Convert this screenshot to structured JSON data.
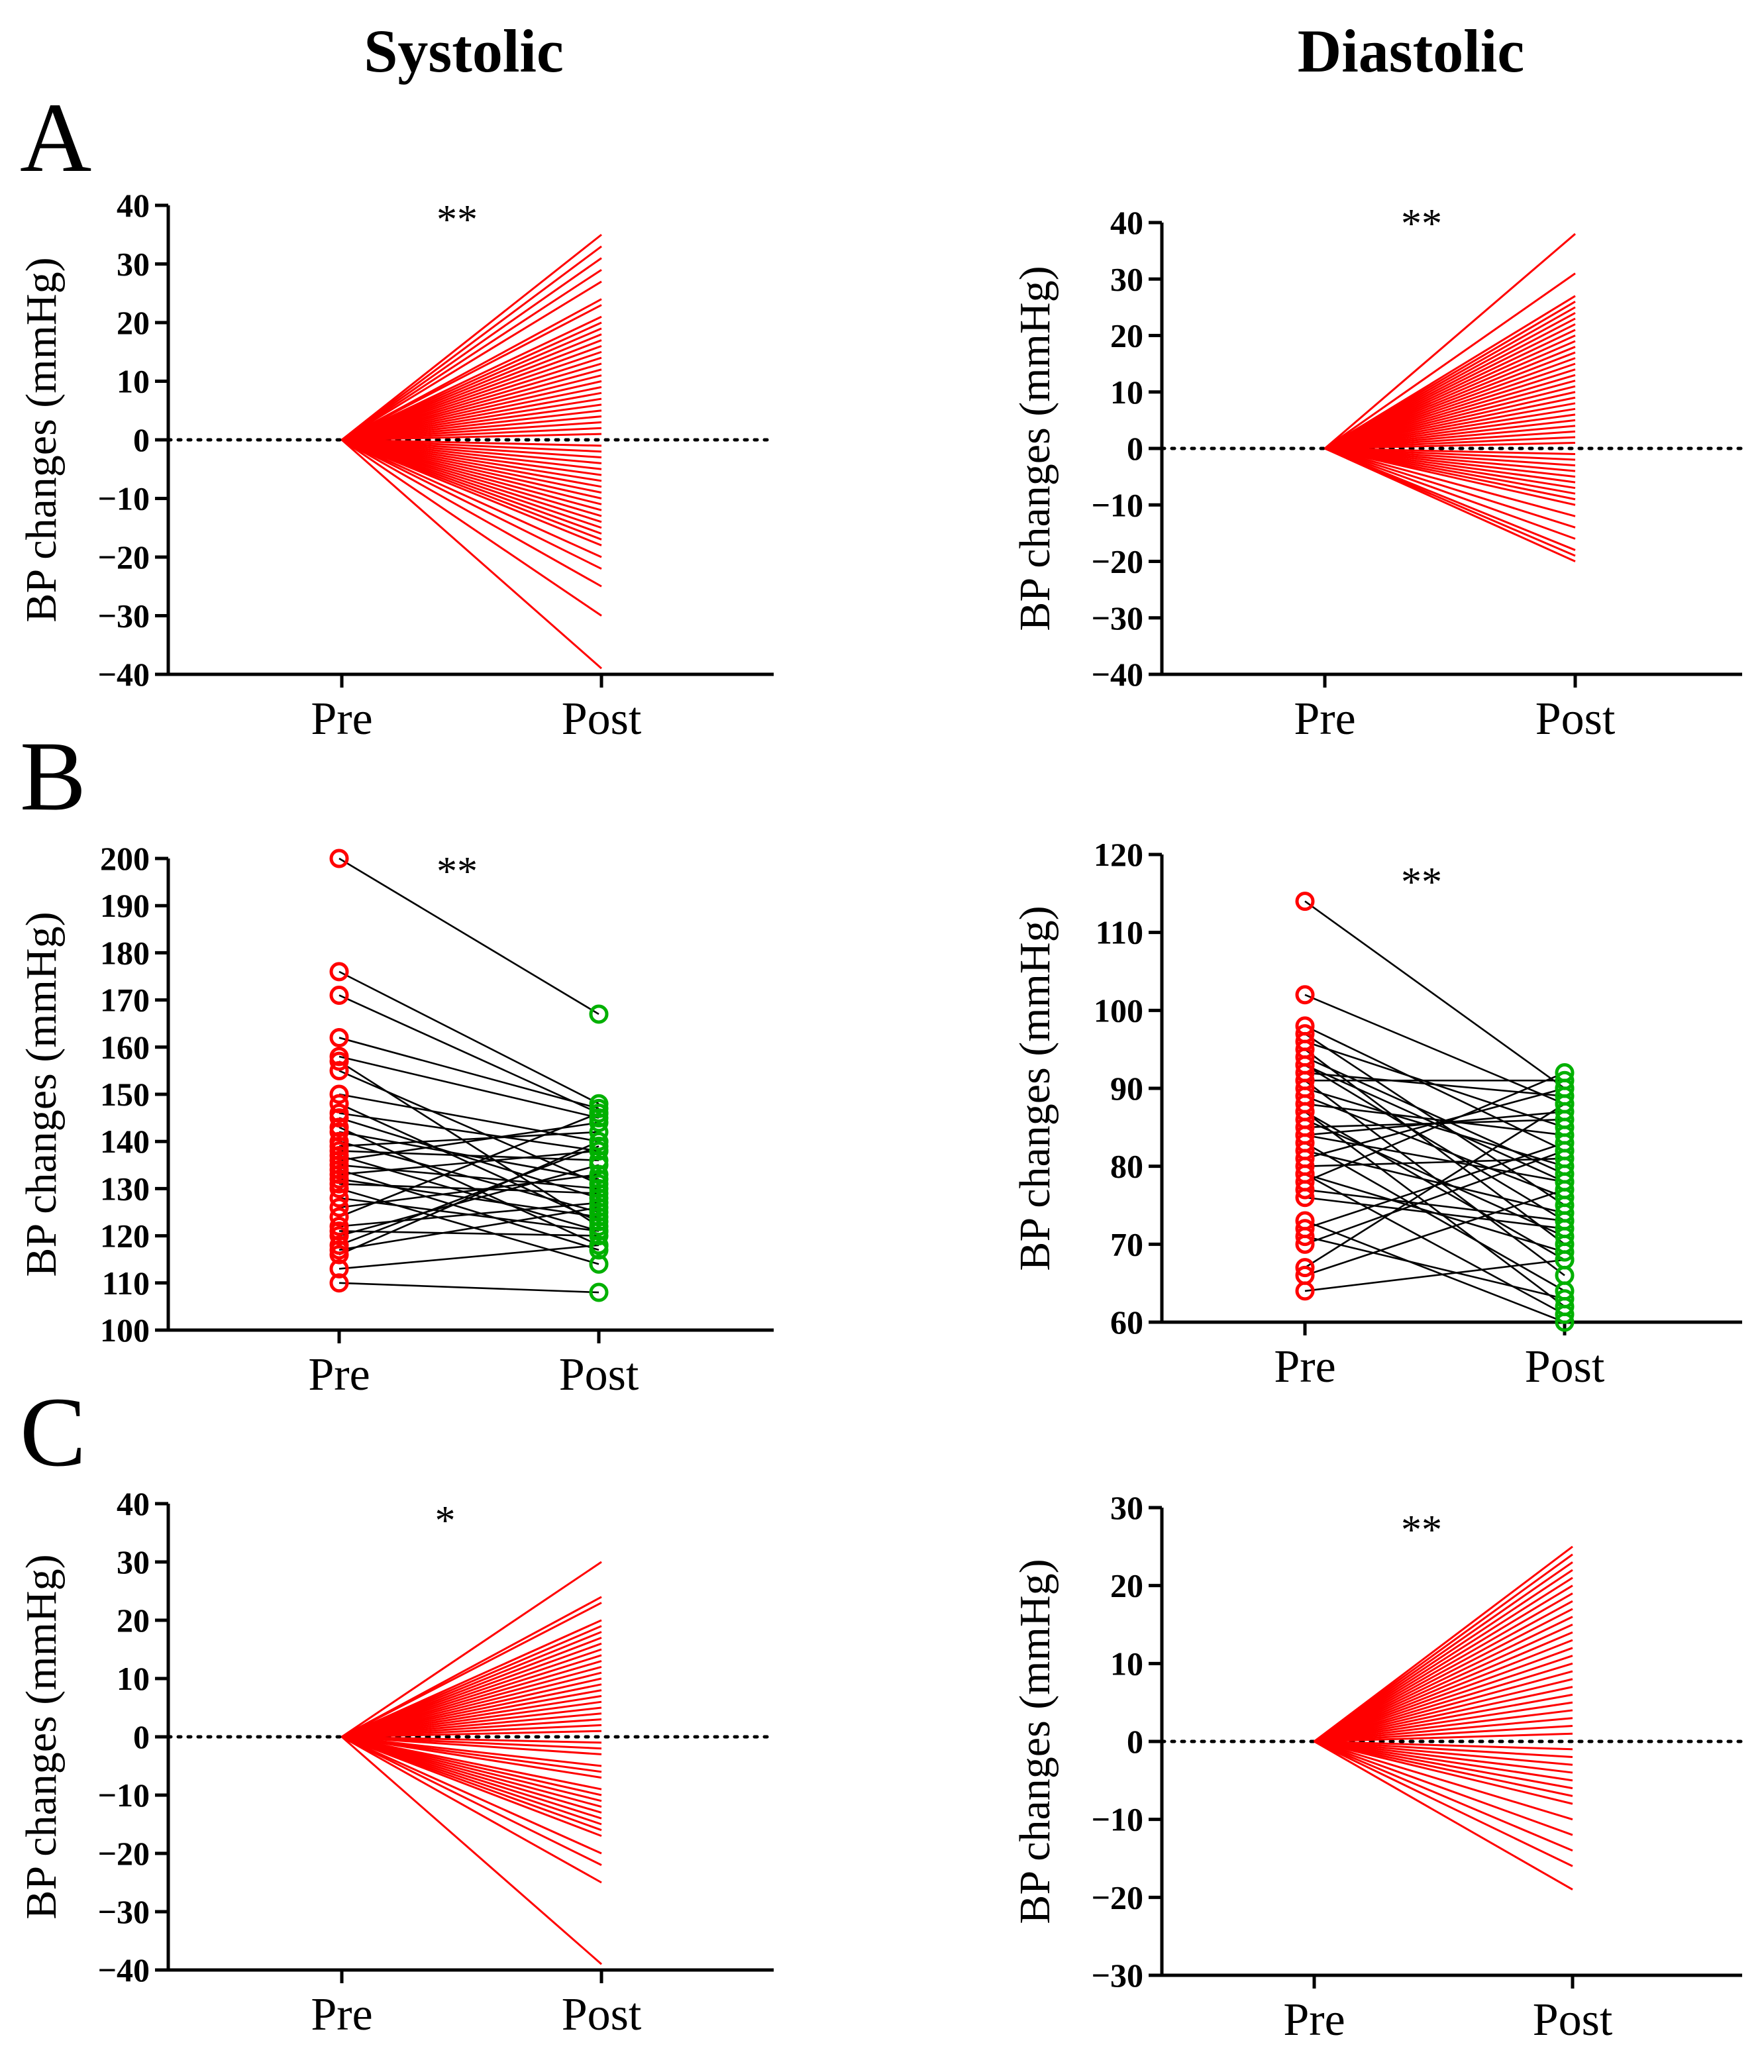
{
  "column_titles": {
    "left": "Systolic",
    "right": "Diastolic"
  },
  "panel_letters": [
    "A",
    "B",
    "C"
  ],
  "colors": {
    "change_lines": "#ff0000",
    "paired_lines": "#000000",
    "pre_marker": "#ff0000",
    "post_marker": "#00b000"
  },
  "chart_data": [
    {
      "id": "A-systolic",
      "panel": "A",
      "column": "Systolic",
      "type": "line",
      "ylabel": "BP changes (mmHg)",
      "categories": [
        "Pre",
        "Post"
      ],
      "ylim": [
        -40,
        40
      ],
      "yticks": [
        40,
        30,
        20,
        10,
        0,
        -10,
        -20,
        -30,
        -40
      ],
      "yticklabels": [
        "40",
        "30",
        "20",
        "10",
        "0",
        "−10",
        "−20",
        "−30",
        "−40"
      ],
      "reference_line": 0,
      "significance": "**",
      "pre_values": "all 0",
      "post_values": [
        35,
        33,
        31,
        29,
        27,
        24,
        23,
        21,
        20,
        19,
        18,
        17,
        16,
        15,
        14,
        13,
        12,
        11,
        10,
        9,
        8,
        7,
        6,
        5,
        4,
        3,
        2,
        1,
        -1,
        -2,
        -3,
        -4,
        -5,
        -6,
        -7,
        -8,
        -9,
        -10,
        -11,
        -12,
        -13,
        -14,
        -15,
        -16,
        -17,
        -18,
        -20,
        -22,
        -25,
        -30,
        -39
      ]
    },
    {
      "id": "A-diastolic",
      "panel": "A",
      "column": "Diastolic",
      "type": "line",
      "ylabel": "BP changes (mmHg)",
      "categories": [
        "Pre",
        "Post"
      ],
      "ylim": [
        -40,
        40
      ],
      "yticks": [
        40,
        30,
        20,
        10,
        0,
        -10,
        -20,
        -30,
        -40
      ],
      "yticklabels": [
        "40",
        "30",
        "20",
        "10",
        "0",
        "−10",
        "−20",
        "−30",
        "−40"
      ],
      "reference_line": 0,
      "significance": "**",
      "pre_values": "all 0",
      "post_values": [
        38,
        31,
        27,
        26,
        25,
        24,
        23,
        22,
        21,
        20,
        19,
        18,
        17,
        16,
        15,
        14,
        13,
        12,
        11,
        10,
        9,
        8,
        7,
        6,
        5,
        4,
        3,
        2,
        1,
        -1,
        -2,
        -3,
        -4,
        -5,
        -6,
        -7,
        -8,
        -9,
        -10,
        -12,
        -14,
        -16,
        -18,
        -19,
        -20
      ]
    },
    {
      "id": "B-systolic",
      "panel": "B",
      "column": "Systolic",
      "type": "line",
      "ylabel": "BP changes (mmHg)",
      "categories": [
        "Pre",
        "Post"
      ],
      "ylim": [
        100,
        200
      ],
      "yticks": [
        200,
        190,
        180,
        170,
        160,
        150,
        140,
        130,
        120,
        110,
        100
      ],
      "yticklabels": [
        "200",
        "190",
        "180",
        "170",
        "160",
        "150",
        "140",
        "130",
        "120",
        "110",
        "100"
      ],
      "significance": "**",
      "pairs": [
        [
          200,
          167
        ],
        [
          176,
          148
        ],
        [
          171,
          146
        ],
        [
          162,
          147
        ],
        [
          158,
          145
        ],
        [
          157,
          122
        ],
        [
          150,
          140
        ],
        [
          146,
          138
        ],
        [
          145,
          128
        ],
        [
          143,
          118
        ],
        [
          142,
          132
        ],
        [
          140,
          125
        ],
        [
          138,
          136
        ],
        [
          137,
          121
        ],
        [
          136,
          144
        ],
        [
          135,
          130
        ],
        [
          134,
          117
        ],
        [
          133,
          138
        ],
        [
          132,
          124
        ],
        [
          131,
          129
        ],
        [
          130,
          114
        ],
        [
          126,
          133
        ],
        [
          122,
          127
        ],
        [
          121,
          120
        ],
        [
          120,
          135
        ],
        [
          118,
          139
        ],
        [
          117,
          126
        ],
        [
          113,
          118
        ],
        [
          110,
          108
        ],
        [
          139,
          142
        ],
        [
          148,
          123
        ],
        [
          155,
          131
        ],
        [
          128,
          121
        ],
        [
          124,
          146
        ],
        [
          116,
          140
        ]
      ]
    },
    {
      "id": "B-diastolic",
      "panel": "B",
      "column": "Diastolic",
      "type": "line",
      "ylabel": "BP changes (mmHg)",
      "categories": [
        "Pre",
        "Post"
      ],
      "ylim": [
        60,
        120
      ],
      "yticks": [
        120,
        110,
        100,
        90,
        80,
        70,
        60
      ],
      "yticklabels": [
        "120",
        "110",
        "100",
        "90",
        "80",
        "70",
        "60"
      ],
      "significance": "**",
      "pairs": [
        [
          114,
          90
        ],
        [
          102,
          88
        ],
        [
          98,
          82
        ],
        [
          97,
          75
        ],
        [
          96,
          85
        ],
        [
          95,
          70
        ],
        [
          94,
          79
        ],
        [
          93,
          73
        ],
        [
          92,
          89
        ],
        [
          91,
          66
        ],
        [
          90,
          80
        ],
        [
          89,
          76
        ],
        [
          88,
          84
        ],
        [
          87,
          62
        ],
        [
          86,
          71
        ],
        [
          85,
          86
        ],
        [
          84,
          78
        ],
        [
          83,
          64
        ],
        [
          82,
          74
        ],
        [
          80,
          81
        ],
        [
          79,
          69
        ],
        [
          78,
          92
        ],
        [
          76,
          72
        ],
        [
          73,
          60
        ],
        [
          72,
          83
        ],
        [
          71,
          63
        ],
        [
          67,
          88
        ],
        [
          66,
          77
        ],
        [
          64,
          68
        ],
        [
          91,
          91
        ],
        [
          87,
          68
        ],
        [
          84,
          87
        ],
        [
          79,
          61
        ],
        [
          81,
          90
        ],
        [
          93,
          78
        ],
        [
          70,
          82
        ],
        [
          77,
          73
        ]
      ]
    },
    {
      "id": "C-systolic",
      "panel": "C",
      "column": "Systolic",
      "type": "line",
      "ylabel": "BP changes (mmHg)",
      "categories": [
        "Pre",
        "Post"
      ],
      "ylim": [
        -40,
        40
      ],
      "yticks": [
        40,
        30,
        20,
        10,
        0,
        -10,
        -20,
        -30,
        -40
      ],
      "yticklabels": [
        "40",
        "30",
        "20",
        "10",
        "0",
        "−10",
        "−20",
        "−30",
        "−40"
      ],
      "reference_line": 0,
      "significance": "*",
      "pre_values": "all 0",
      "post_values": [
        30,
        24,
        23,
        20,
        19,
        18,
        17,
        16,
        15,
        14,
        13,
        12,
        11,
        10,
        9,
        8,
        7,
        6,
        5,
        4,
        3,
        2,
        1,
        -1,
        -2,
        -3,
        -5,
        -6,
        -7,
        -9,
        -10,
        -11,
        -12,
        -13,
        -14,
        -15,
        -16,
        -17,
        -20,
        -22,
        -25,
        -39
      ]
    },
    {
      "id": "C-diastolic",
      "panel": "C",
      "column": "Diastolic",
      "type": "line",
      "ylabel": "BP changes (mmHg)",
      "categories": [
        "Pre",
        "Post"
      ],
      "ylim": [
        -30,
        30
      ],
      "yticks": [
        30,
        20,
        10,
        0,
        -10,
        -20,
        -30
      ],
      "yticklabels": [
        "30",
        "20",
        "10",
        "0",
        "−10",
        "−20",
        "−30"
      ],
      "reference_line": 0,
      "significance": "**",
      "pre_values": "all 0",
      "post_values": [
        25,
        24,
        23,
        22,
        21,
        20,
        19,
        18,
        17,
        16,
        15,
        14,
        13,
        12,
        11,
        10,
        9,
        8,
        7,
        6,
        5,
        4,
        3,
        2,
        1,
        -1,
        -2,
        -3,
        -4,
        -5,
        -6,
        -7,
        -8,
        -10,
        -12,
        -14,
        -16,
        -19
      ]
    }
  ]
}
